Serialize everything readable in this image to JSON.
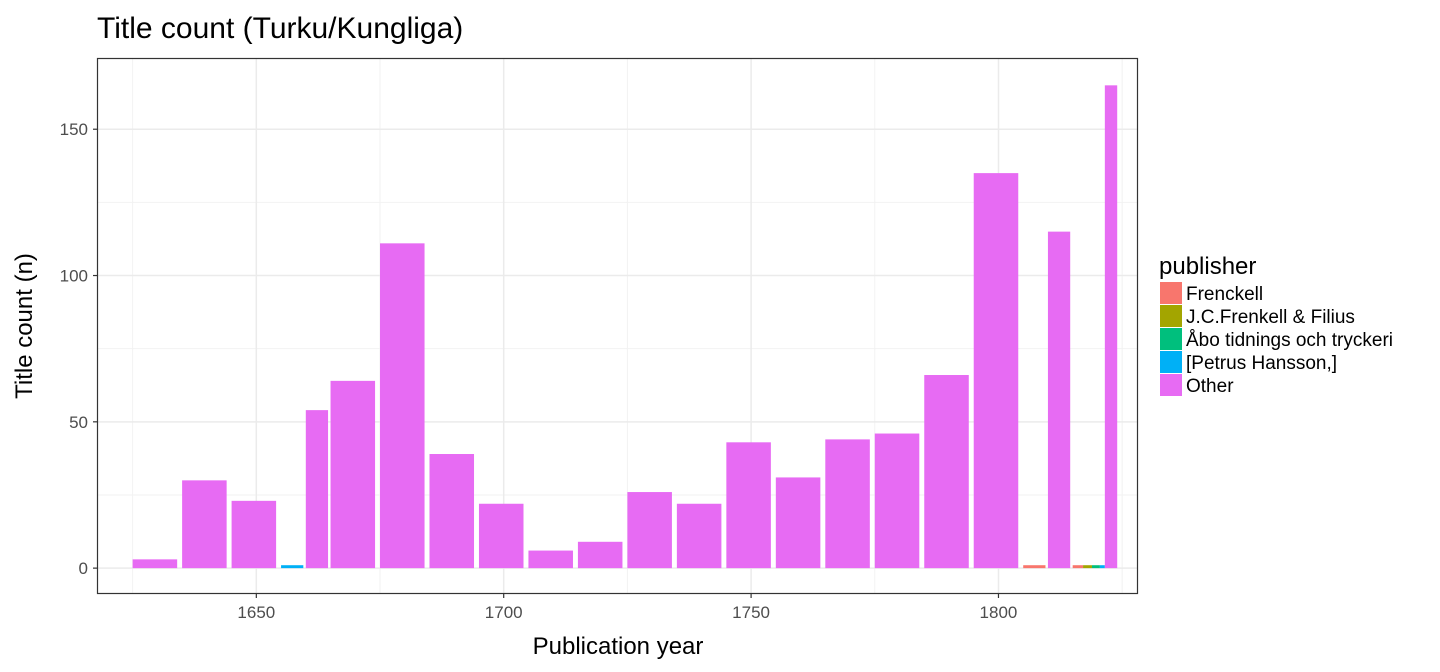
{
  "chart_data": {
    "type": "bar",
    "stacked": true,
    "title": "Title count (Turku/Kungliga)",
    "xlabel": "Publication year",
    "ylabel": "Title count (n)",
    "xlim": [
      1618,
      1828
    ],
    "ylim": [
      -8.5,
      174
    ],
    "x_ticks": [
      "1650",
      "1700",
      "1750",
      "1800"
    ],
    "y_ticks": [
      "0",
      "50",
      "100",
      "150"
    ],
    "grid": true,
    "legend": {
      "title": "publisher",
      "position": "right",
      "entries": [
        {
          "label": "Frenckell",
          "color": "#F8766D"
        },
        {
          "label": "J.C.Frenkell & Filius",
          "color": "#A3A500"
        },
        {
          "label": "Åbo tidnings och tryckeri",
          "color": "#00BF7D"
        },
        {
          "label": "[Petrus Hansson,]",
          "color": "#00B0F6"
        },
        {
          "label": "Other",
          "color": "#E76BF3"
        }
      ]
    },
    "bars": [
      {
        "x_start": 1625,
        "x_end": 1634,
        "publisher": "Other",
        "value": 3
      },
      {
        "x_start": 1635,
        "x_end": 1644,
        "publisher": "Other",
        "value": 30
      },
      {
        "x_start": 1645,
        "x_end": 1654,
        "publisher": "Other",
        "value": 23
      },
      {
        "x_start": 1655,
        "x_end": 1659.5,
        "publisher": "[Petrus Hansson,]",
        "value": 1
      },
      {
        "x_start": 1660,
        "x_end": 1664.5,
        "publisher": "Other",
        "value": 54
      },
      {
        "x_start": 1665,
        "x_end": 1674,
        "publisher": "Other",
        "value": 64
      },
      {
        "x_start": 1675,
        "x_end": 1684,
        "publisher": "Other",
        "value": 111
      },
      {
        "x_start": 1685,
        "x_end": 1694,
        "publisher": "Other",
        "value": 39
      },
      {
        "x_start": 1695,
        "x_end": 1704,
        "publisher": "Other",
        "value": 22
      },
      {
        "x_start": 1705,
        "x_end": 1714,
        "publisher": "Other",
        "value": 6
      },
      {
        "x_start": 1715,
        "x_end": 1724,
        "publisher": "Other",
        "value": 9
      },
      {
        "x_start": 1725,
        "x_end": 1734,
        "publisher": "Other",
        "value": 26
      },
      {
        "x_start": 1735,
        "x_end": 1744,
        "publisher": "Other",
        "value": 22
      },
      {
        "x_start": 1745,
        "x_end": 1754,
        "publisher": "Other",
        "value": 43
      },
      {
        "x_start": 1755,
        "x_end": 1764,
        "publisher": "Other",
        "value": 31
      },
      {
        "x_start": 1765,
        "x_end": 1774,
        "publisher": "Other",
        "value": 44
      },
      {
        "x_start": 1775,
        "x_end": 1784,
        "publisher": "Other",
        "value": 46
      },
      {
        "x_start": 1785,
        "x_end": 1794,
        "publisher": "Other",
        "value": 66
      },
      {
        "x_start": 1795,
        "x_end": 1804,
        "publisher": "Other",
        "value": 135
      },
      {
        "x_start": 1805,
        "x_end": 1809.5,
        "publisher": "Frenckell",
        "value": 1
      },
      {
        "x_start": 1810,
        "x_end": 1814.5,
        "publisher": "Other",
        "value": 115
      },
      {
        "x_start": 1815,
        "x_end": 1817.1,
        "publisher": "Frenckell",
        "value": 1
      },
      {
        "x_start": 1817.1,
        "x_end": 1818.9,
        "publisher": "J.C.Frenkell & Filius",
        "value": 1
      },
      {
        "x_start": 1818.9,
        "x_end": 1820.5,
        "publisher": "Åbo tidnings och tryckeri",
        "value": 1
      },
      {
        "x_start": 1820.5,
        "x_end": 1821.5,
        "publisher": "[Petrus Hansson,]",
        "value": 1
      },
      {
        "x_start": 1821.5,
        "x_end": 1824,
        "publisher": "Other",
        "value": 165
      }
    ]
  }
}
